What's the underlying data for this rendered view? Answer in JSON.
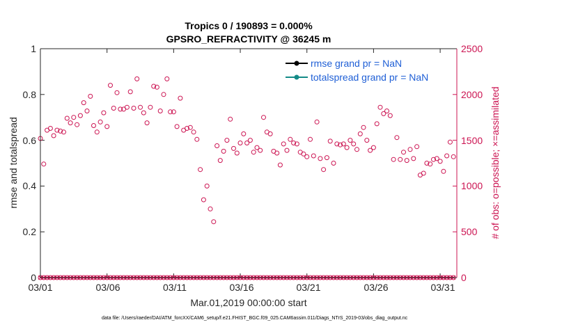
{
  "chart_data": {
    "type": "scatter",
    "title_line1": "Tropics 0 / 190893 = 0.000%",
    "title_line2": "GPSRO_REFRACTIVITY @ 36245 m",
    "xlabel": "Mar.01,2019 00:00:00 start",
    "ylabel_left": "rmse and totalspread",
    "ylabel_right": "# of obs: o=possible; ×=assimilated",
    "footnote": "data file: /Users/raeder/DAI/ATM_forcXX/CAM6_setup/f.e21.FHIST_BGC.f09_025.CAM6assim.011/Diags_NTrS_2019-03/obs_diag_output.nc",
    "x_ticks": [
      "03/01",
      "03/06",
      "03/11",
      "03/16",
      "03/21",
      "03/26",
      "03/31"
    ],
    "x_tick_days": [
      0,
      5,
      10,
      15,
      20,
      25,
      30
    ],
    "xlim": [
      0,
      31.25
    ],
    "ylim_left": [
      0,
      1
    ],
    "left_ticks": [
      "0",
      "0.2",
      "0.4",
      "0.6",
      "0.8",
      "1"
    ],
    "ylim_right": [
      0,
      2500
    ],
    "right_ticks": [
      "0",
      "500",
      "1000",
      "1500",
      "2000",
      "2500"
    ],
    "legend": [
      {
        "label": "rmse grand pr = NaN",
        "color": "#000000"
      },
      {
        "label": "totalspread grand pr = NaN",
        "color": "#138a87"
      }
    ],
    "colors": {
      "obs": "#cc1452",
      "axis": "#262626",
      "legend_text": "#1f5fd6"
    },
    "possible_obs": {
      "day": [
        0.0,
        0.25,
        0.5,
        0.75,
        1.0,
        1.25,
        1.5,
        1.75,
        2.0,
        2.25,
        2.5,
        2.75,
        3.0,
        3.25,
        3.5,
        3.75,
        4.0,
        4.25,
        4.5,
        4.75,
        5.0,
        5.25,
        5.5,
        5.75,
        6.0,
        6.25,
        6.5,
        6.75,
        7.0,
        7.25,
        7.5,
        7.75,
        8.0,
        8.25,
        8.5,
        8.75,
        9.0,
        9.25,
        9.5,
        9.75,
        10.0,
        10.25,
        10.5,
        10.75,
        11.0,
        11.25,
        11.5,
        11.75,
        12.0,
        12.25,
        12.5,
        12.75,
        13.0,
        13.25,
        13.5,
        13.75,
        14.0,
        14.25,
        14.5,
        14.75,
        15.0,
        15.25,
        15.5,
        15.75,
        16.0,
        16.25,
        16.5,
        16.75,
        17.0,
        17.25,
        17.5,
        17.75,
        18.0,
        18.25,
        18.5,
        18.75,
        19.0,
        19.25,
        19.5,
        19.75,
        20.0,
        20.25,
        20.5,
        20.75,
        21.0,
        21.25,
        21.5,
        21.75,
        22.0,
        22.25,
        22.5,
        22.75,
        23.0,
        23.25,
        23.5,
        23.75,
        24.0,
        24.25,
        24.5,
        24.75,
        25.0,
        25.25,
        25.5,
        25.75,
        26.0,
        26.25,
        26.5,
        26.75,
        27.0,
        27.25,
        27.5,
        27.75,
        28.0,
        28.25,
        28.5,
        28.75,
        29.0,
        29.25,
        29.5,
        29.75,
        30.0,
        30.25,
        30.5,
        30.75,
        31.0
      ],
      "count": [
        1520,
        1240,
        1610,
        1630,
        1550,
        1610,
        1600,
        1590,
        1740,
        1690,
        1750,
        1670,
        1770,
        1910,
        1820,
        1980,
        1660,
        1590,
        1700,
        1800,
        1650,
        2100,
        1850,
        2020,
        1840,
        1840,
        1860,
        2030,
        1850,
        2170,
        1860,
        1800,
        1690,
        1860,
        2090,
        2080,
        1820,
        2000,
        2170,
        1810,
        1810,
        1650,
        1960,
        1610,
        1630,
        1640,
        1590,
        1510,
        1180,
        850,
        1000,
        750,
        610,
        1440,
        1280,
        1380,
        1500,
        1730,
        1410,
        1360,
        1470,
        1570,
        1470,
        1500,
        1370,
        1420,
        1390,
        1750,
        1590,
        1570,
        1380,
        1360,
        1230,
        1460,
        1390,
        1510,
        1470,
        1460,
        1370,
        1350,
        1320,
        1510,
        1330,
        1700,
        1300,
        1180,
        1310,
        1490,
        1250,
        1460,
        1450,
        1460,
        1420,
        1500,
        1460,
        1400,
        1570,
        1640,
        1500,
        1390,
        1420,
        1680,
        1860,
        1790,
        1820,
        1770,
        1290,
        1530,
        1290,
        1370,
        1280,
        1400,
        1300,
        1430,
        1120,
        1140,
        1250,
        1240,
        1290,
        1300,
        1270,
        1160,
        1330,
        1480,
        1320
      ]
    },
    "assimilated_obs": {
      "all_zero": true
    }
  }
}
